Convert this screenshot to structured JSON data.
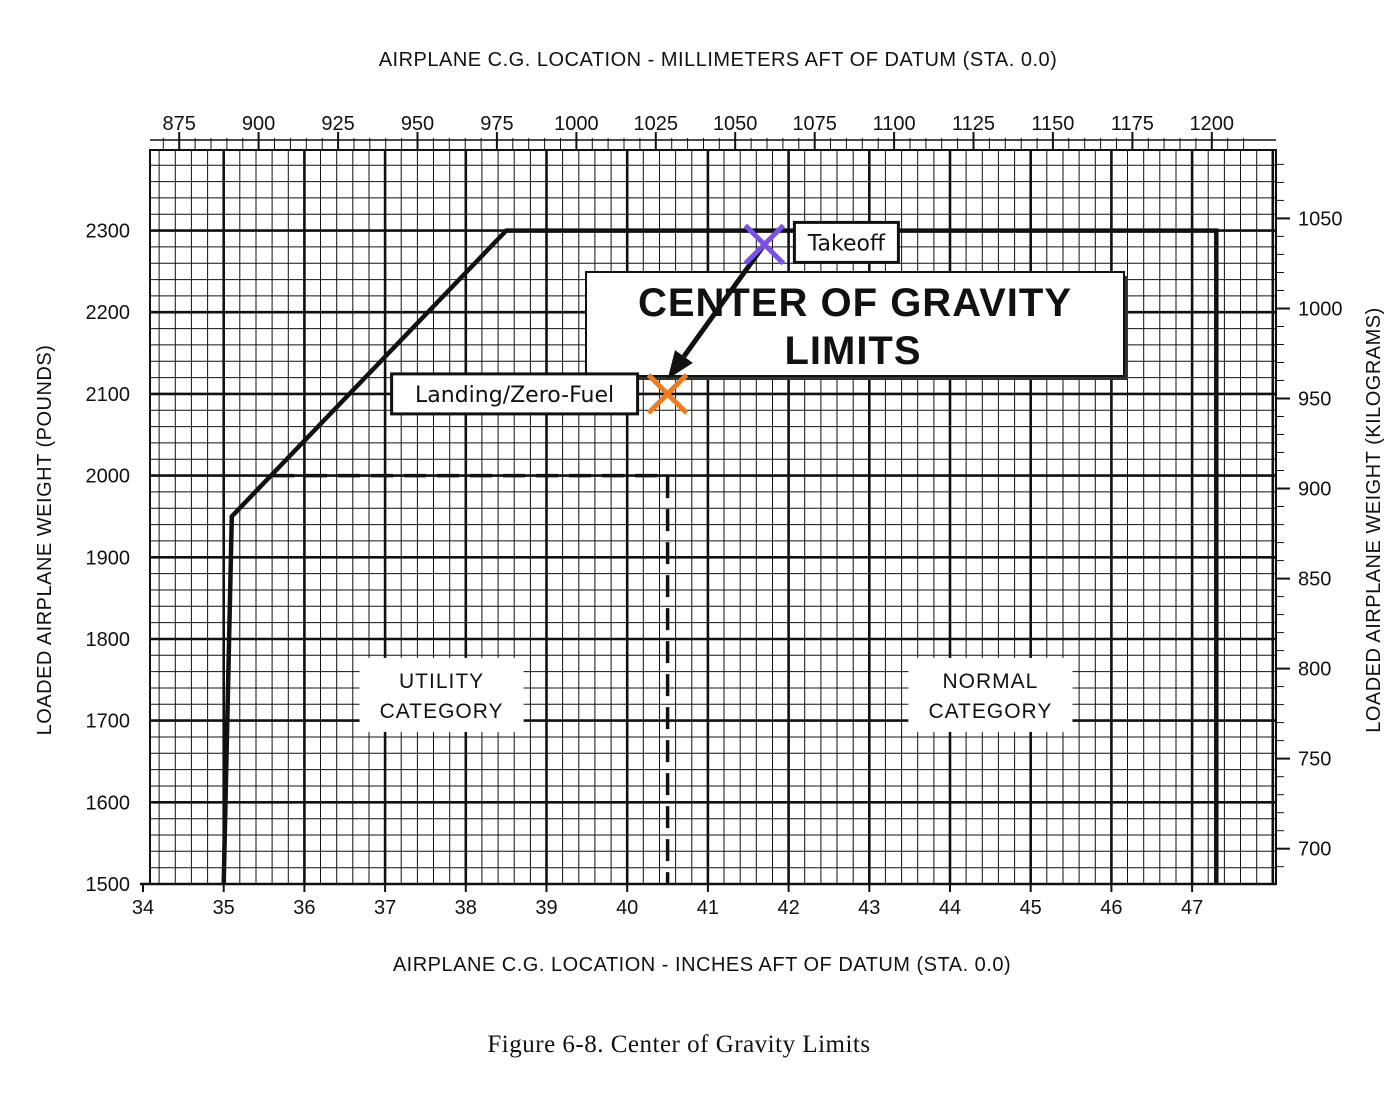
{
  "chart_data": {
    "type": "line",
    "title": "CENTER OF GRAVITY LIMITS",
    "caption": "Figure 6-8.   Center of Gravity Limits",
    "x_bottom": {
      "label": "AIRPLANE C.G. LOCATION - INCHES AFT OF DATUM (STA. 0.0)",
      "range": [
        34,
        48
      ],
      "ticks": [
        34,
        35,
        36,
        37,
        38,
        39,
        40,
        41,
        42,
        43,
        44,
        45,
        46,
        47
      ]
    },
    "x_top": {
      "label": "AIRPLANE C.G. LOCATION - MILLIMETERS AFT OF DATUM (STA. 0.0)",
      "ticks": [
        875,
        900,
        925,
        950,
        975,
        1000,
        1025,
        1050,
        1075,
        1100,
        1125,
        1150,
        1175,
        1200
      ]
    },
    "y_left": {
      "label": "LOADED AIRPLANE WEIGHT (POUNDS)",
      "range": [
        1500,
        2400
      ],
      "ticks": [
        1500,
        1600,
        1700,
        1800,
        1900,
        2000,
        2100,
        2200,
        2300
      ]
    },
    "y_right": {
      "label": "LOADED AIRPLANE WEIGHT (KILOGRAMS)",
      "ticks": [
        700,
        750,
        800,
        850,
        900,
        950,
        1000,
        1050
      ]
    },
    "grid": true,
    "series": [
      {
        "name": "NORMAL CATEGORY",
        "style": "solid",
        "points": [
          [
            35.0,
            1500
          ],
          [
            35.1,
            1950
          ],
          [
            38.5,
            2300
          ],
          [
            47.3,
            2300
          ],
          [
            47.3,
            1500
          ]
        ]
      },
      {
        "name": "UTILITY CATEGORY",
        "style": "dashed",
        "points": [
          [
            35.6,
            2000
          ],
          [
            40.5,
            2000
          ],
          [
            40.5,
            1500
          ]
        ]
      }
    ],
    "region_labels": [
      {
        "lines": [
          "UTILITY",
          "CATEGORY"
        ],
        "x": 37.7,
        "y": 1718
      },
      {
        "lines": [
          "NORMAL",
          "CATEGORY"
        ],
        "x": 44.5,
        "y": 1718
      }
    ],
    "annotations": [
      {
        "label": "Takeoff",
        "x": 41.7,
        "y": 2283,
        "color": "#7b4ff0"
      },
      {
        "label": "Landing/Zero-Fuel",
        "x": 40.5,
        "y": 2100,
        "color": "#f07a1e"
      }
    ],
    "arrow": {
      "from": [
        41.7,
        2283
      ],
      "to": [
        40.5,
        2118
      ]
    }
  }
}
